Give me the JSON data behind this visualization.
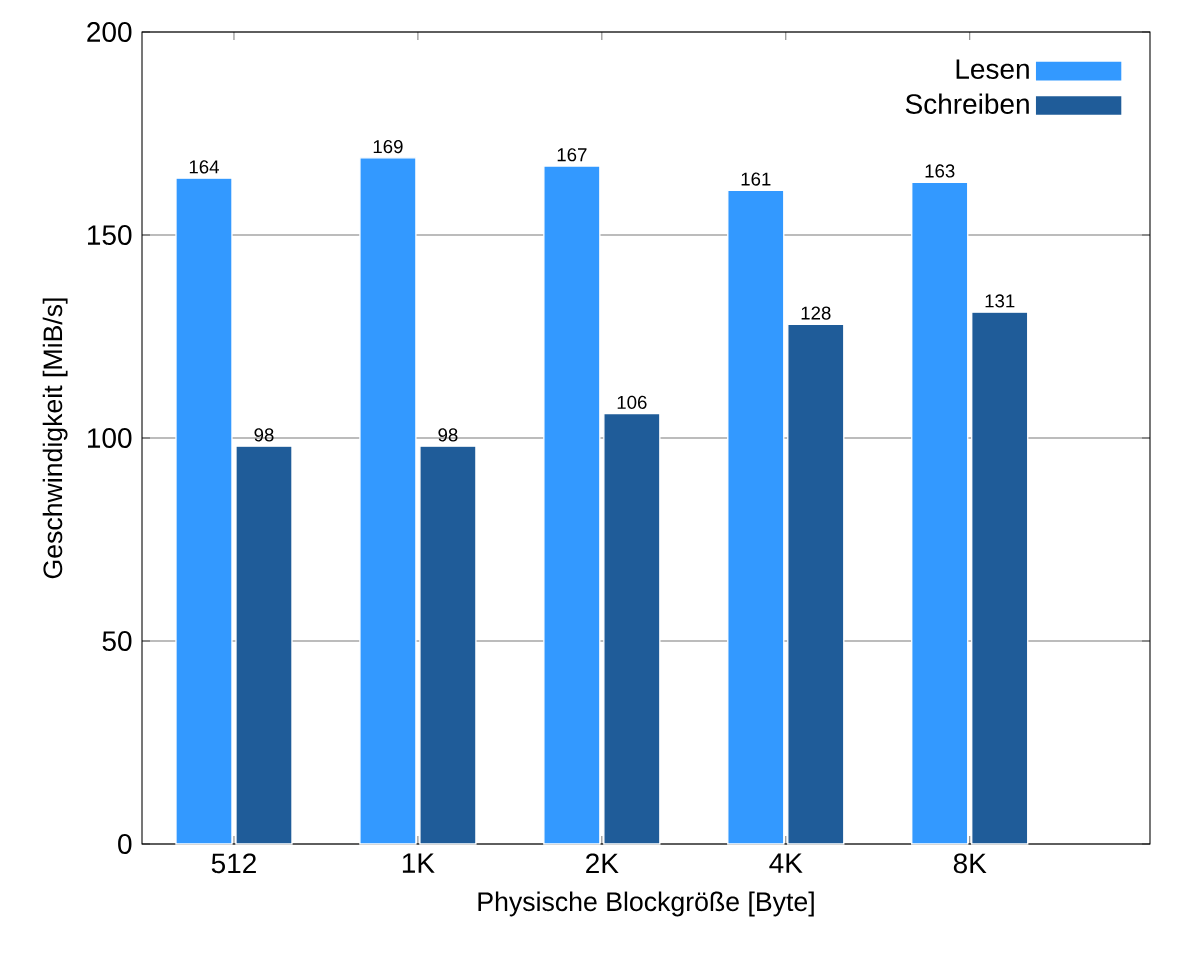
{
  "chart_data": {
    "type": "bar",
    "xlabel": "Physische Blockgröße [Byte]",
    "ylabel": "Geschwindigkeit [MiB/s]",
    "categories": [
      "512",
      "1K",
      "2K",
      "4K",
      "8K"
    ],
    "series": [
      {
        "name": "Lesen",
        "color": "#3399ff",
        "values": [
          164,
          169,
          167,
          161,
          163
        ]
      },
      {
        "name": "Schreiben",
        "color": "#1f5c99",
        "values": [
          98,
          98,
          106,
          128,
          131
        ]
      }
    ],
    "ylim": [
      0,
      200
    ],
    "yticks": [
      0,
      50,
      100,
      150,
      200
    ],
    "grid": "y",
    "legend": "top right",
    "data_labels": true
  }
}
